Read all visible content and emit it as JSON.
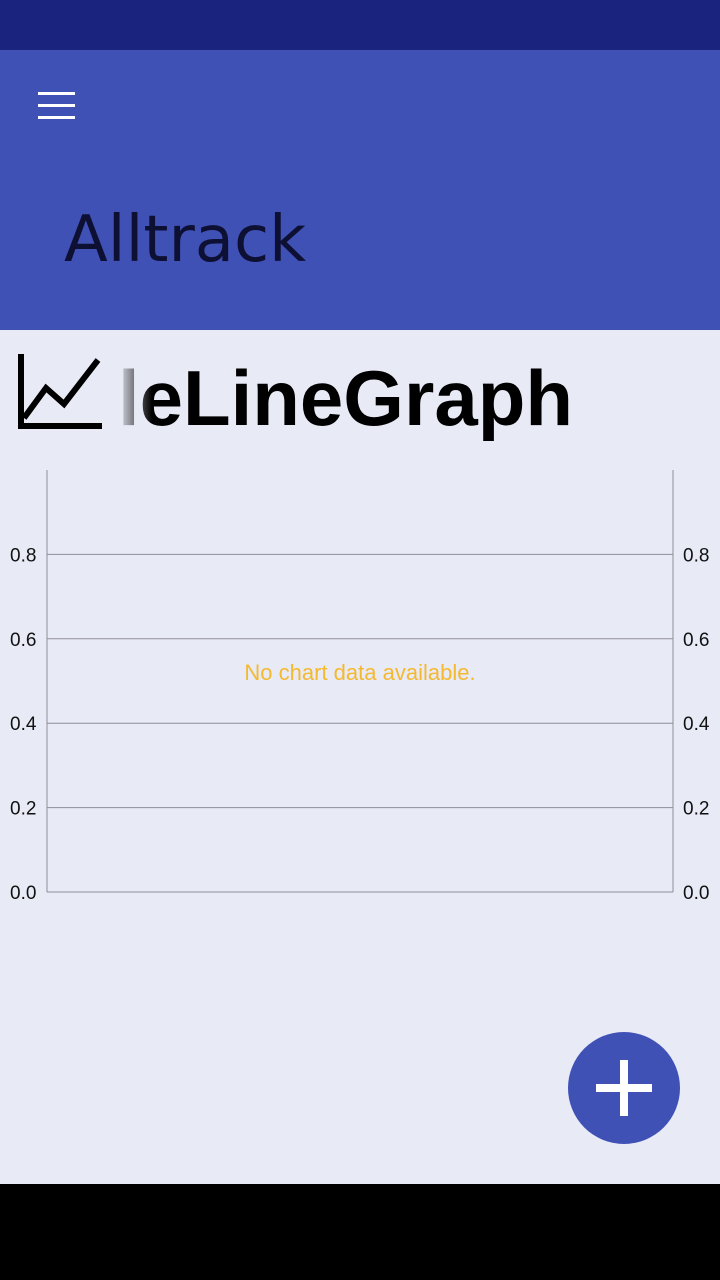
{
  "app_bar": {
    "title": "Alltrack",
    "menu_icon": "hamburger-menu-icon"
  },
  "graph": {
    "icon": "line-chart-icon",
    "title_visible": "leLineGraph"
  },
  "chart_data": {
    "type": "line",
    "series": [],
    "y_ticks": [
      "0.0",
      "0.2",
      "0.4",
      "0.6",
      "0.8"
    ],
    "ylim": [
      0,
      1
    ],
    "right_axis_ticks": [
      "0.0",
      "0.2",
      "0.4",
      "0.6",
      "0.8"
    ],
    "grid": true,
    "no_data_text": "No chart data available.",
    "colors": {
      "no_data_text": "#f4b92f",
      "grid": "#8e8e98",
      "tick_labels": "#111111"
    }
  },
  "fab": {
    "icon": "plus-icon"
  },
  "colors": {
    "status_bar": "#1a237e",
    "app_bar": "#3f51b5",
    "background": "#e8eaf6",
    "accent": "#3f51b5"
  }
}
